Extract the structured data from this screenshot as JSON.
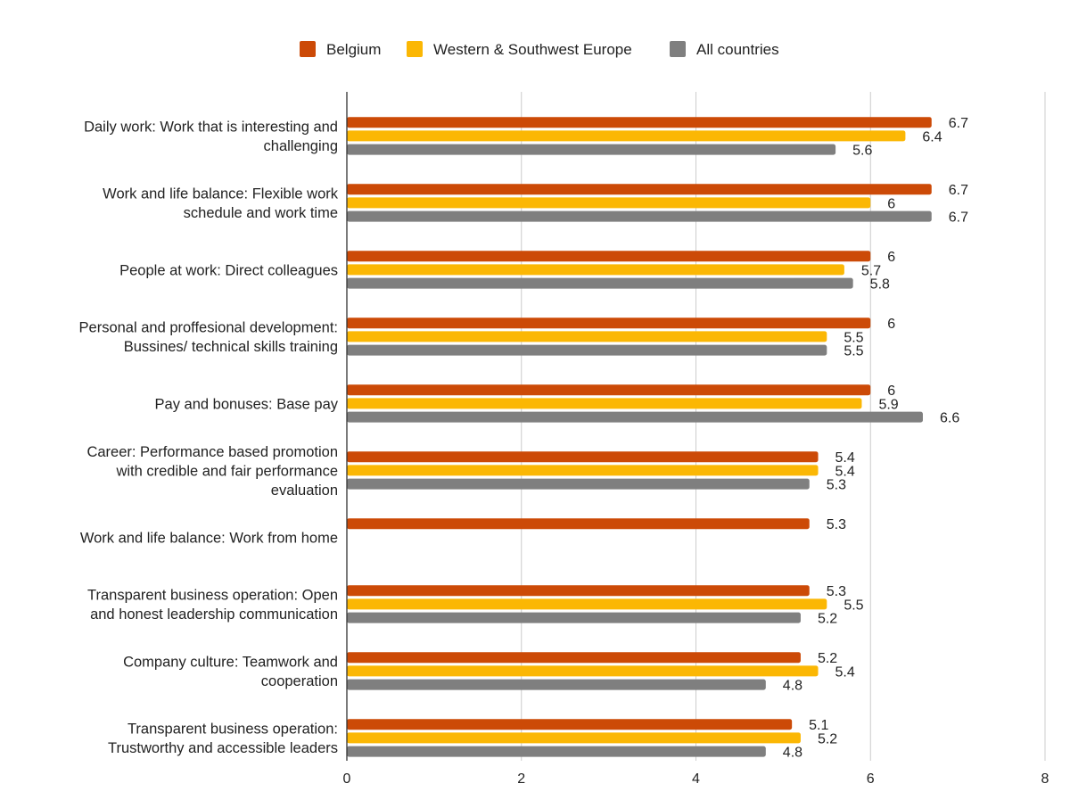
{
  "chart_data": {
    "type": "bar",
    "orientation": "horizontal",
    "title": "",
    "xlabel": "",
    "ylabel": "",
    "xlim": [
      0,
      8
    ],
    "x_ticks": [
      0,
      2,
      4,
      6,
      8
    ],
    "grid": true,
    "legend_position": "top",
    "categories": [
      [
        "Daily work: Work that is interesting and",
        "challenging"
      ],
      [
        "Work and life balance: Flexible work",
        "schedule and work time"
      ],
      [
        "People at work: Direct colleagues"
      ],
      [
        "Personal and proffesional development:",
        "Bussines/ technical skills training"
      ],
      [
        "Pay and bonuses: Base pay"
      ],
      [
        "Career: Performance based promotion",
        "with credible and fair performance",
        "evaluation"
      ],
      [
        "Work and life balance: Work from home"
      ],
      [
        "Transparent business operation: Open",
        "and honest leadership communication"
      ],
      [
        "Company culture: Teamwork and",
        "cooperation"
      ],
      [
        "Transparent business operation:",
        "Trustworthy and accessible leaders"
      ]
    ],
    "series": [
      {
        "name": "Belgium",
        "color": "#cc4a07",
        "values": [
          6.7,
          6.7,
          6,
          6,
          6,
          5.4,
          5.3,
          5.3,
          5.2,
          5.1
        ],
        "labels": [
          "6.7",
          "6.7",
          "6",
          "6",
          "6",
          "5.4",
          "5.3",
          "5.3",
          "5.2",
          "5.1"
        ]
      },
      {
        "name": "Western & Southwest Europe",
        "color": "#fbb704",
        "values": [
          6.4,
          6,
          5.7,
          5.5,
          5.9,
          5.4,
          null,
          5.5,
          5.4,
          5.2
        ],
        "labels": [
          "6.4",
          "6",
          "5.7",
          "5.5",
          "5.9",
          "5.4",
          "",
          "5.5",
          "5.4",
          "5.2"
        ]
      },
      {
        "name": "All countries",
        "color": "#7f7f7f",
        "values": [
          5.6,
          6.7,
          5.8,
          5.5,
          6.6,
          5.3,
          null,
          5.2,
          4.8,
          4.8
        ],
        "labels": [
          "5.6",
          "6.7",
          "5.8",
          "5.5",
          "6.6",
          "5.3",
          "",
          "5.2",
          "4.8",
          "4.8"
        ]
      }
    ]
  }
}
